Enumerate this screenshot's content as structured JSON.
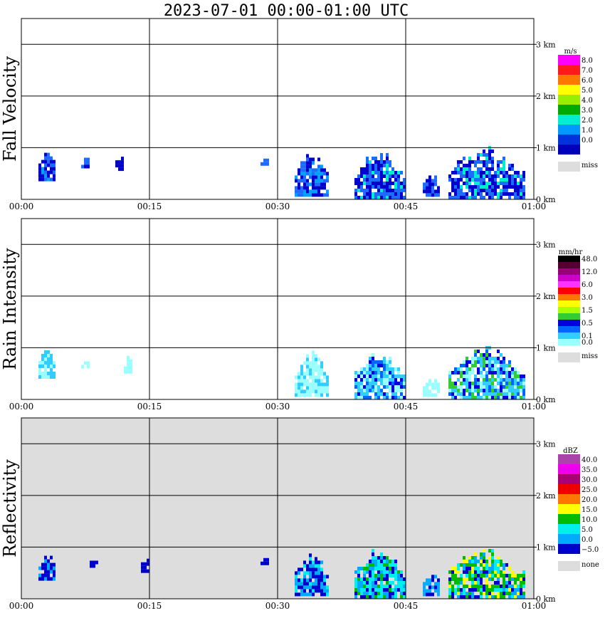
{
  "title": "2023-07-01   00:00-01:00 UTC",
  "chart_data": [
    {
      "type": "heatmap",
      "ylabel": "Fall Velocity",
      "background": "white",
      "xlim": [
        "00:00",
        "01:00"
      ],
      "ylim_km": [
        0,
        3.5
      ],
      "x_ticks": [
        "00:00",
        "00:15",
        "00:30",
        "00:45",
        "01:00"
      ],
      "y_ticks": [
        "0 km",
        "1 km",
        "2 km",
        "3 km"
      ],
      "grid": true,
      "legend_position": "right",
      "colorbar": {
        "unit": "m/s",
        "labels": [
          "8.0",
          "7.0",
          "6.0",
          "5.0",
          "4.0",
          "3.0",
          "2.0",
          "1.0",
          "0.0"
        ],
        "colors": [
          "#ff00ff",
          "#ff1a1a",
          "#ff7700",
          "#ffff00",
          "#99ee00",
          "#00aa00",
          "#00eecc",
          "#0099ff",
          "#0033dd",
          "#0000bb"
        ],
        "miss_label": "miss"
      },
      "echo_regions": [
        {
          "start": "00:02",
          "end": "00:04",
          "top_km": 0.95,
          "base_km": 0.35,
          "palette": [
            "#0000cc",
            "#1e6bff",
            "#0000cc",
            "#00a0ff"
          ]
        },
        {
          "start": "00:07",
          "end": "00:08",
          "top_km": 0.8,
          "base_km": 0.6,
          "palette": [
            "#0000cc",
            "#1e6bff"
          ]
        },
        {
          "start": "00:11",
          "end": "00:12",
          "top_km": 0.85,
          "base_km": 0.55,
          "palette": [
            "#0000cc"
          ]
        },
        {
          "start": "00:28",
          "end": "00:29",
          "top_km": 0.8,
          "base_km": 0.65,
          "palette": [
            "#1e6bff"
          ]
        },
        {
          "start": "00:32",
          "end": "00:36",
          "top_km": 0.9,
          "base_km": 0.05,
          "palette": [
            "#0000cc",
            "#1e6bff",
            "#00a0ff",
            "#0000cc"
          ]
        },
        {
          "start": "00:39",
          "end": "00:45",
          "top_km": 0.95,
          "base_km": 0.0,
          "palette": [
            "#0000cc",
            "#1e6bff",
            "#1e6bff",
            "#00eecc",
            "#0000cc"
          ]
        },
        {
          "start": "00:47",
          "end": "00:49",
          "top_km": 0.5,
          "base_km": 0.05,
          "palette": [
            "#0000cc",
            "#1e6bff"
          ]
        },
        {
          "start": "00:50",
          "end": "00:59",
          "top_km": 1.0,
          "base_km": 0.0,
          "palette": [
            "#0000cc",
            "#1e6bff",
            "#1e6bff",
            "#00eecc",
            "#0000cc"
          ]
        }
      ]
    },
    {
      "type": "heatmap",
      "ylabel": "Rain Intensity",
      "background": "white",
      "xlim": [
        "00:00",
        "01:00"
      ],
      "ylim_km": [
        0,
        3.5
      ],
      "x_ticks": [
        "00:00",
        "00:15",
        "00:30",
        "00:45",
        "01:00"
      ],
      "y_ticks": [
        "0 km",
        "1 km",
        "2 km",
        "3 km"
      ],
      "grid": true,
      "legend_position": "right",
      "colorbar": {
        "unit": "mm/hr",
        "labels": [
          "48.0",
          "",
          "12.0",
          "",
          "6.0",
          "",
          "3.0",
          "",
          "1.5",
          "",
          "0.5",
          "",
          "0.1",
          "0.0"
        ],
        "colors": [
          "#000000",
          "#550033",
          "#990077",
          "#cc00cc",
          "#ff33ff",
          "#ff0000",
          "#ff7700",
          "#ffff00",
          "#aaff00",
          "#33cc33",
          "#0000dd",
          "#0066ff",
          "#33ccff",
          "#99ffff"
        ],
        "miss_label": "miss"
      },
      "echo_regions": [
        {
          "start": "00:02",
          "end": "00:04",
          "top_km": 0.95,
          "base_km": 0.4,
          "palette": [
            "#99ffff",
            "#33ccff"
          ]
        },
        {
          "start": "00:07",
          "end": "00:08",
          "top_km": 0.75,
          "base_km": 0.6,
          "palette": [
            "#99ffff"
          ]
        },
        {
          "start": "00:12",
          "end": "00:13",
          "top_km": 0.85,
          "base_km": 0.5,
          "palette": [
            "#99ffff"
          ]
        },
        {
          "start": "00:32",
          "end": "00:36",
          "top_km": 0.9,
          "base_km": 0.05,
          "palette": [
            "#99ffff",
            "#33ccff",
            "#99ffff"
          ]
        },
        {
          "start": "00:39",
          "end": "00:45",
          "top_km": 0.95,
          "base_km": 0.0,
          "palette": [
            "#99ffff",
            "#33ccff",
            "#0066ff",
            "#0000dd",
            "#33ccff"
          ]
        },
        {
          "start": "00:47",
          "end": "00:49",
          "top_km": 0.4,
          "base_km": 0.05,
          "palette": [
            "#99ffff"
          ]
        },
        {
          "start": "00:50",
          "end": "00:59",
          "top_km": 1.0,
          "base_km": 0.0,
          "palette": [
            "#99ffff",
            "#33ccff",
            "#0066ff",
            "#0000dd",
            "#33cc33",
            "#33ccff"
          ]
        }
      ]
    },
    {
      "type": "heatmap",
      "ylabel": "Reflectivity",
      "background": "grey",
      "xlim": [
        "00:00",
        "01:00"
      ],
      "ylim_km": [
        0,
        3.5
      ],
      "x_ticks": [
        "00:00",
        "00:15",
        "00:30",
        "00:45",
        "01:00"
      ],
      "y_ticks": [
        "0 km",
        "1 km",
        "2 km",
        "3 km"
      ],
      "grid": true,
      "legend_position": "right",
      "colorbar": {
        "unit": "dBZ",
        "labels": [
          "40.0",
          "35.0",
          "30.0",
          "25.0",
          "20.0",
          "15.0",
          "10.0",
          "5.0",
          "0.0",
          "−5.0"
        ],
        "colors": [
          "#aa44aa",
          "#ee00ee",
          "#aa0077",
          "#ee0000",
          "#ff7700",
          "#ffff00",
          "#00bb00",
          "#00eeee",
          "#00aaff",
          "#0000cc"
        ],
        "miss_label": "none"
      },
      "echo_regions": [
        {
          "start": "00:02",
          "end": "00:04",
          "top_km": 0.95,
          "base_km": 0.35,
          "palette": [
            "#0000cc",
            "#00aaff",
            "#0000cc"
          ]
        },
        {
          "start": "00:08",
          "end": "00:09",
          "top_km": 0.75,
          "base_km": 0.6,
          "palette": [
            "#0000cc"
          ]
        },
        {
          "start": "00:14",
          "end": "00:15",
          "top_km": 0.8,
          "base_km": 0.5,
          "palette": [
            "#0000cc"
          ]
        },
        {
          "start": "00:28",
          "end": "00:29",
          "top_km": 0.8,
          "base_km": 0.65,
          "palette": [
            "#0000cc"
          ]
        },
        {
          "start": "00:32",
          "end": "00:36",
          "top_km": 0.9,
          "base_km": 0.05,
          "palette": [
            "#0000cc",
            "#00aaff",
            "#00eeee",
            "#0000cc"
          ]
        },
        {
          "start": "00:39",
          "end": "00:45",
          "top_km": 0.95,
          "base_km": 0.0,
          "palette": [
            "#00aaff",
            "#00eeee",
            "#00bb00",
            "#00eeee",
            "#0000cc"
          ]
        },
        {
          "start": "00:47",
          "end": "00:49",
          "top_km": 0.5,
          "base_km": 0.05,
          "palette": [
            "#0000cc",
            "#00aaff"
          ]
        },
        {
          "start": "00:50",
          "end": "00:59",
          "top_km": 1.0,
          "base_km": 0.0,
          "palette": [
            "#00eeee",
            "#00bb00",
            "#00bb00",
            "#ffff00",
            "#00aaff",
            "#0000cc"
          ]
        }
      ]
    }
  ]
}
